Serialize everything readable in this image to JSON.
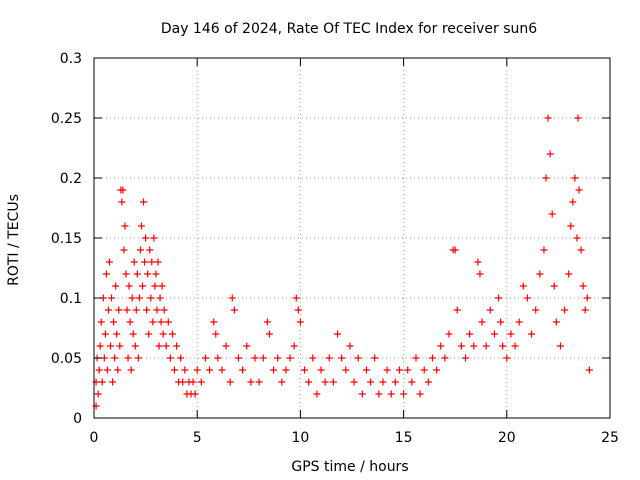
{
  "chart_data": {
    "type": "scatter",
    "title": "Day 146 of 2024, Rate Of TEC Index for receiver sun6",
    "xlabel": "GPS time / hours",
    "ylabel": "ROTI / TECUs",
    "xlim": [
      0,
      25
    ],
    "ylim": [
      0,
      0.3
    ],
    "x_ticks": [
      0,
      5,
      10,
      15,
      20,
      25
    ],
    "y_ticks": [
      0,
      0.05,
      0.1,
      0.15,
      0.2,
      0.25,
      0.3
    ],
    "x_tick_labels": [
      "0",
      "5",
      "10",
      "15",
      "20",
      "25"
    ],
    "y_tick_labels": [
      "0",
      "0.05",
      "0.1",
      "0.15",
      "0.2",
      "0.25",
      "0.3"
    ],
    "grid": true,
    "marker": "+",
    "color": "#ff0000",
    "points": [
      [
        0.1,
        0.01
      ],
      [
        0.1,
        0.03
      ],
      [
        0.15,
        0.05
      ],
      [
        0.2,
        0.02
      ],
      [
        0.25,
        0.04
      ],
      [
        0.3,
        0.06
      ],
      [
        0.35,
        0.08
      ],
      [
        0.4,
        0.03
      ],
      [
        0.45,
        0.1
      ],
      [
        0.5,
        0.05
      ],
      [
        0.55,
        0.07
      ],
      [
        0.6,
        0.12
      ],
      [
        0.65,
        0.04
      ],
      [
        0.7,
        0.09
      ],
      [
        0.75,
        0.13
      ],
      [
        0.8,
        0.06
      ],
      [
        0.85,
        0.1
      ],
      [
        0.9,
        0.03
      ],
      [
        0.95,
        0.08
      ],
      [
        1.0,
        0.05
      ],
      [
        1.05,
        0.11
      ],
      [
        1.1,
        0.07
      ],
      [
        1.15,
        0.04
      ],
      [
        1.2,
        0.09
      ],
      [
        1.25,
        0.06
      ],
      [
        1.3,
        0.19
      ],
      [
        1.35,
        0.18
      ],
      [
        1.4,
        0.19
      ],
      [
        1.45,
        0.14
      ],
      [
        1.5,
        0.16
      ],
      [
        1.55,
        0.12
      ],
      [
        1.6,
        0.09
      ],
      [
        1.65,
        0.05
      ],
      [
        1.7,
        0.11
      ],
      [
        1.75,
        0.08
      ],
      [
        1.8,
        0.04
      ],
      [
        1.85,
        0.1
      ],
      [
        1.9,
        0.07
      ],
      [
        1.95,
        0.13
      ],
      [
        2.0,
        0.06
      ],
      [
        2.05,
        0.09
      ],
      [
        2.1,
        0.12
      ],
      [
        2.15,
        0.05
      ],
      [
        2.2,
        0.1
      ],
      [
        2.25,
        0.14
      ],
      [
        2.3,
        0.16
      ],
      [
        2.35,
        0.11
      ],
      [
        2.4,
        0.18
      ],
      [
        2.45,
        0.13
      ],
      [
        2.5,
        0.15
      ],
      [
        2.55,
        0.09
      ],
      [
        2.6,
        0.12
      ],
      [
        2.65,
        0.07
      ],
      [
        2.7,
        0.14
      ],
      [
        2.75,
        0.1
      ],
      [
        2.8,
        0.13
      ],
      [
        2.85,
        0.08
      ],
      [
        2.9,
        0.15
      ],
      [
        2.95,
        0.11
      ],
      [
        3.0,
        0.12
      ],
      [
        3.05,
        0.09
      ],
      [
        3.1,
        0.13
      ],
      [
        3.15,
        0.06
      ],
      [
        3.2,
        0.1
      ],
      [
        3.25,
        0.08
      ],
      [
        3.3,
        0.11
      ],
      [
        3.35,
        0.07
      ],
      [
        3.4,
        0.09
      ],
      [
        3.5,
        0.06
      ],
      [
        3.6,
        0.08
      ],
      [
        3.7,
        0.05
      ],
      [
        3.8,
        0.07
      ],
      [
        3.9,
        0.04
      ],
      [
        4.0,
        0.06
      ],
      [
        4.1,
        0.03
      ],
      [
        4.2,
        0.05
      ],
      [
        4.3,
        0.03
      ],
      [
        4.4,
        0.04
      ],
      [
        4.5,
        0.02
      ],
      [
        4.6,
        0.03
      ],
      [
        4.7,
        0.02
      ],
      [
        4.8,
        0.03
      ],
      [
        4.9,
        0.02
      ],
      [
        5.0,
        0.04
      ],
      [
        5.2,
        0.03
      ],
      [
        5.4,
        0.05
      ],
      [
        5.6,
        0.04
      ],
      [
        5.8,
        0.08
      ],
      [
        5.9,
        0.07
      ],
      [
        6.0,
        0.05
      ],
      [
        6.2,
        0.04
      ],
      [
        6.4,
        0.06
      ],
      [
        6.6,
        0.03
      ],
      [
        6.7,
        0.1
      ],
      [
        6.8,
        0.09
      ],
      [
        7.0,
        0.05
      ],
      [
        7.2,
        0.04
      ],
      [
        7.4,
        0.06
      ],
      [
        7.6,
        0.03
      ],
      [
        7.8,
        0.05
      ],
      [
        8.0,
        0.03
      ],
      [
        8.2,
        0.05
      ],
      [
        8.4,
        0.08
      ],
      [
        8.5,
        0.07
      ],
      [
        8.7,
        0.04
      ],
      [
        8.9,
        0.05
      ],
      [
        9.1,
        0.03
      ],
      [
        9.3,
        0.04
      ],
      [
        9.5,
        0.05
      ],
      [
        9.7,
        0.06
      ],
      [
        9.8,
        0.1
      ],
      [
        9.9,
        0.09
      ],
      [
        10.0,
        0.08
      ],
      [
        10.2,
        0.04
      ],
      [
        10.4,
        0.03
      ],
      [
        10.6,
        0.05
      ],
      [
        10.8,
        0.02
      ],
      [
        11.0,
        0.04
      ],
      [
        11.2,
        0.03
      ],
      [
        11.4,
        0.05
      ],
      [
        11.6,
        0.03
      ],
      [
        11.8,
        0.07
      ],
      [
        12.0,
        0.05
      ],
      [
        12.2,
        0.04
      ],
      [
        12.4,
        0.06
      ],
      [
        12.6,
        0.03
      ],
      [
        12.8,
        0.05
      ],
      [
        13.0,
        0.02
      ],
      [
        13.2,
        0.04
      ],
      [
        13.4,
        0.03
      ],
      [
        13.6,
        0.05
      ],
      [
        13.8,
        0.02
      ],
      [
        14.0,
        0.03
      ],
      [
        14.2,
        0.04
      ],
      [
        14.4,
        0.02
      ],
      [
        14.6,
        0.03
      ],
      [
        14.8,
        0.04
      ],
      [
        15.0,
        0.02
      ],
      [
        15.2,
        0.04
      ],
      [
        15.4,
        0.03
      ],
      [
        15.6,
        0.05
      ],
      [
        15.8,
        0.02
      ],
      [
        16.0,
        0.04
      ],
      [
        16.2,
        0.03
      ],
      [
        16.4,
        0.05
      ],
      [
        16.6,
        0.04
      ],
      [
        16.8,
        0.06
      ],
      [
        17.0,
        0.05
      ],
      [
        17.2,
        0.07
      ],
      [
        17.4,
        0.14
      ],
      [
        17.5,
        0.14
      ],
      [
        17.6,
        0.09
      ],
      [
        17.8,
        0.06
      ],
      [
        18.0,
        0.05
      ],
      [
        18.2,
        0.07
      ],
      [
        18.4,
        0.06
      ],
      [
        18.6,
        0.13
      ],
      [
        18.7,
        0.12
      ],
      [
        18.8,
        0.08
      ],
      [
        19.0,
        0.06
      ],
      [
        19.2,
        0.09
      ],
      [
        19.4,
        0.07
      ],
      [
        19.6,
        0.1
      ],
      [
        19.7,
        0.08
      ],
      [
        19.8,
        0.06
      ],
      [
        20.0,
        0.05
      ],
      [
        20.2,
        0.07
      ],
      [
        20.4,
        0.06
      ],
      [
        20.6,
        0.08
      ],
      [
        20.8,
        0.11
      ],
      [
        21.0,
        0.1
      ],
      [
        21.2,
        0.07
      ],
      [
        21.4,
        0.09
      ],
      [
        21.6,
        0.12
      ],
      [
        21.8,
        0.14
      ],
      [
        21.9,
        0.2
      ],
      [
        22.0,
        0.25
      ],
      [
        22.1,
        0.22
      ],
      [
        22.2,
        0.17
      ],
      [
        22.3,
        0.11
      ],
      [
        22.4,
        0.08
      ],
      [
        22.6,
        0.06
      ],
      [
        22.8,
        0.09
      ],
      [
        23.0,
        0.12
      ],
      [
        23.1,
        0.16
      ],
      [
        23.2,
        0.18
      ],
      [
        23.3,
        0.2
      ],
      [
        23.4,
        0.15
      ],
      [
        23.45,
        0.25
      ],
      [
        23.5,
        0.19
      ],
      [
        23.6,
        0.14
      ],
      [
        23.7,
        0.11
      ],
      [
        23.8,
        0.09
      ],
      [
        23.9,
        0.1
      ],
      [
        24.0,
        0.04
      ]
    ]
  }
}
